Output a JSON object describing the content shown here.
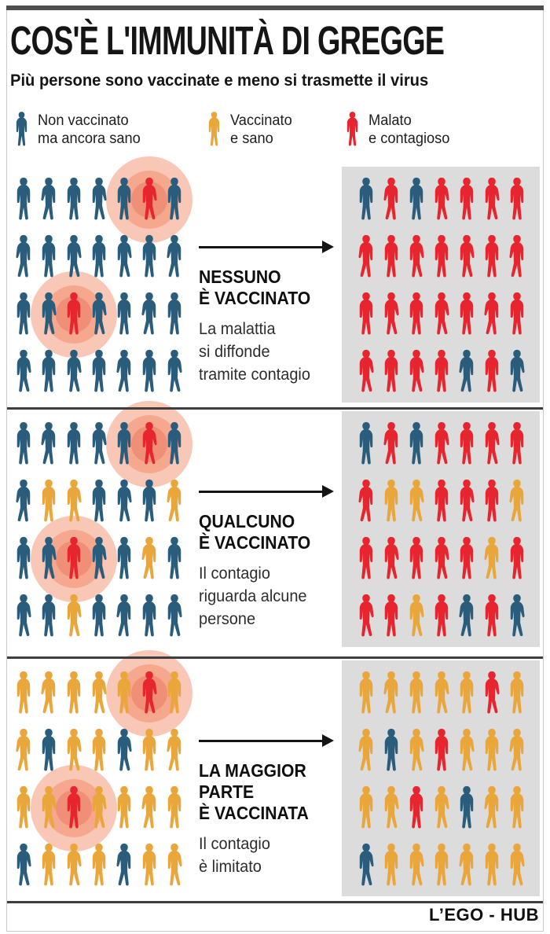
{
  "header": {
    "title": "COS'È L'IMMUNITÀ DI GREGGE",
    "subtitle": "Più persone sono vaccinate e meno si trasmette il virus"
  },
  "legend": {
    "items": [
      {
        "id": "unvaccinated-healthy",
        "color": "blue",
        "label": [
          "Non vaccinato",
          "ma ancora sano"
        ]
      },
      {
        "id": "vaccinated-healthy",
        "color": "orange",
        "label": [
          "Vaccinato",
          "e sano"
        ]
      },
      {
        "id": "sick-contagious",
        "color": "red",
        "label": [
          "Malato",
          "e contagioso"
        ]
      }
    ]
  },
  "colors": {
    "blue": "#2a5c7b",
    "orange": "#e9a63b",
    "red": "#e6252e",
    "halo_outer": "#f9c7b6",
    "halo_mid": "#f5a88e",
    "halo_inner": "#ef8f78",
    "panel_bg": "#dcdcdc",
    "divider": "#3e3e3e",
    "arrow": "#141414"
  },
  "icons": {
    "person-icon": "human silhouette",
    "arrow-right-icon": "long right arrow",
    "contagion-halo": "concentric salmon circles"
  },
  "code_legend": {
    "B": "non vaccinato (blu)",
    "O": "vaccinato (arancio)",
    "R": "malato (rosso)",
    "Rh": "malato con alone di contagio"
  },
  "sections": [
    {
      "id": "nobody-vaccinated",
      "heading": [
        "NESSUNO",
        "È VACCINATO"
      ],
      "description": [
        "La malattia",
        "si diffonde",
        "tramite contagio"
      ],
      "left_grid": [
        [
          "B",
          "B",
          "B",
          "B",
          "B",
          "Rh",
          "B"
        ],
        [
          "B",
          "B",
          "B",
          "B",
          "B",
          "B",
          "B"
        ],
        [
          "B",
          "B",
          "Rh",
          "B",
          "B",
          "B",
          "B"
        ],
        [
          "B",
          "B",
          "B",
          "B",
          "B",
          "B",
          "B"
        ]
      ],
      "right_grid": [
        [
          "B",
          "R",
          "B",
          "R",
          "R",
          "R",
          "R"
        ],
        [
          "R",
          "R",
          "R",
          "R",
          "R",
          "R",
          "R"
        ],
        [
          "R",
          "R",
          "R",
          "R",
          "R",
          "R",
          "R"
        ],
        [
          "R",
          "R",
          "R",
          "R",
          "B",
          "R",
          "B"
        ]
      ]
    },
    {
      "id": "somebody-vaccinated",
      "heading": [
        "QUALCUNO",
        "È VACCINATO"
      ],
      "description": [
        "Il contagio",
        "riguarda alcune",
        "persone"
      ],
      "left_grid": [
        [
          "B",
          "B",
          "B",
          "B",
          "B",
          "Rh",
          "B"
        ],
        [
          "B",
          "O",
          "O",
          "B",
          "B",
          "B",
          "O"
        ],
        [
          "B",
          "B",
          "Rh",
          "B",
          "B",
          "O",
          "B"
        ],
        [
          "B",
          "B",
          "O",
          "B",
          "B",
          "B",
          "B"
        ]
      ],
      "right_grid": [
        [
          "B",
          "R",
          "B",
          "R",
          "R",
          "R",
          "R"
        ],
        [
          "R",
          "O",
          "O",
          "R",
          "R",
          "R",
          "O"
        ],
        [
          "R",
          "R",
          "R",
          "R",
          "R",
          "O",
          "R"
        ],
        [
          "R",
          "R",
          "O",
          "R",
          "B",
          "R",
          "B"
        ]
      ]
    },
    {
      "id": "most-vaccinated",
      "heading": [
        "LA MAGGIOR",
        "PARTE",
        "È VACCINATA"
      ],
      "description": [
        "Il contagio",
        "è limitato"
      ],
      "left_grid": [
        [
          "O",
          "O",
          "O",
          "O",
          "O",
          "Rh",
          "O"
        ],
        [
          "O",
          "B",
          "O",
          "O",
          "B",
          "O",
          "O"
        ],
        [
          "O",
          "O",
          "Rh",
          "O",
          "O",
          "O",
          "O"
        ],
        [
          "B",
          "O",
          "O",
          "O",
          "B",
          "O",
          "O"
        ]
      ],
      "right_grid": [
        [
          "O",
          "O",
          "O",
          "O",
          "O",
          "R",
          "O"
        ],
        [
          "O",
          "B",
          "O",
          "R",
          "O",
          "O",
          "O"
        ],
        [
          "O",
          "O",
          "R",
          "O",
          "B",
          "O",
          "O"
        ],
        [
          "B",
          "O",
          "O",
          "O",
          "O",
          "O",
          "O"
        ]
      ]
    }
  ],
  "footer": {
    "credit": "L’EGO - HUB"
  }
}
